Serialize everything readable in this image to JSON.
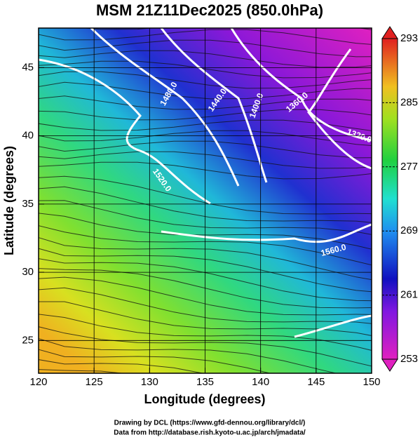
{
  "chart_data": {
    "type": "map",
    "title": "MSM 21Z11Dec2025 (850.0hPa)",
    "x_label": "Longitude (degrees)",
    "y_label": "Latitude  (degrees)",
    "xlim": [
      120,
      150
    ],
    "xticks": [
      120,
      125,
      130,
      135,
      140,
      145,
      150
    ],
    "ylim": [
      22.6,
      47.9
    ],
    "yticks": [
      25,
      30,
      35,
      40,
      45
    ],
    "grid": true,
    "colorbar": {
      "lim": [
        253,
        293
      ],
      "ticks": [
        253,
        261,
        269,
        277,
        285,
        293
      ]
    },
    "contour_labels": [
      "1480.0",
      "1440.0",
      "1400.0",
      "1360.0",
      "1320.0",
      "1520.0",
      "1560.0"
    ],
    "credits": [
      "Drawing by DCL (https://www.gfd-dennou.org/library/dcl/)",
      "Data from http://database.rish.kyoto-u.ac.jp/arch/jmadata/"
    ]
  }
}
